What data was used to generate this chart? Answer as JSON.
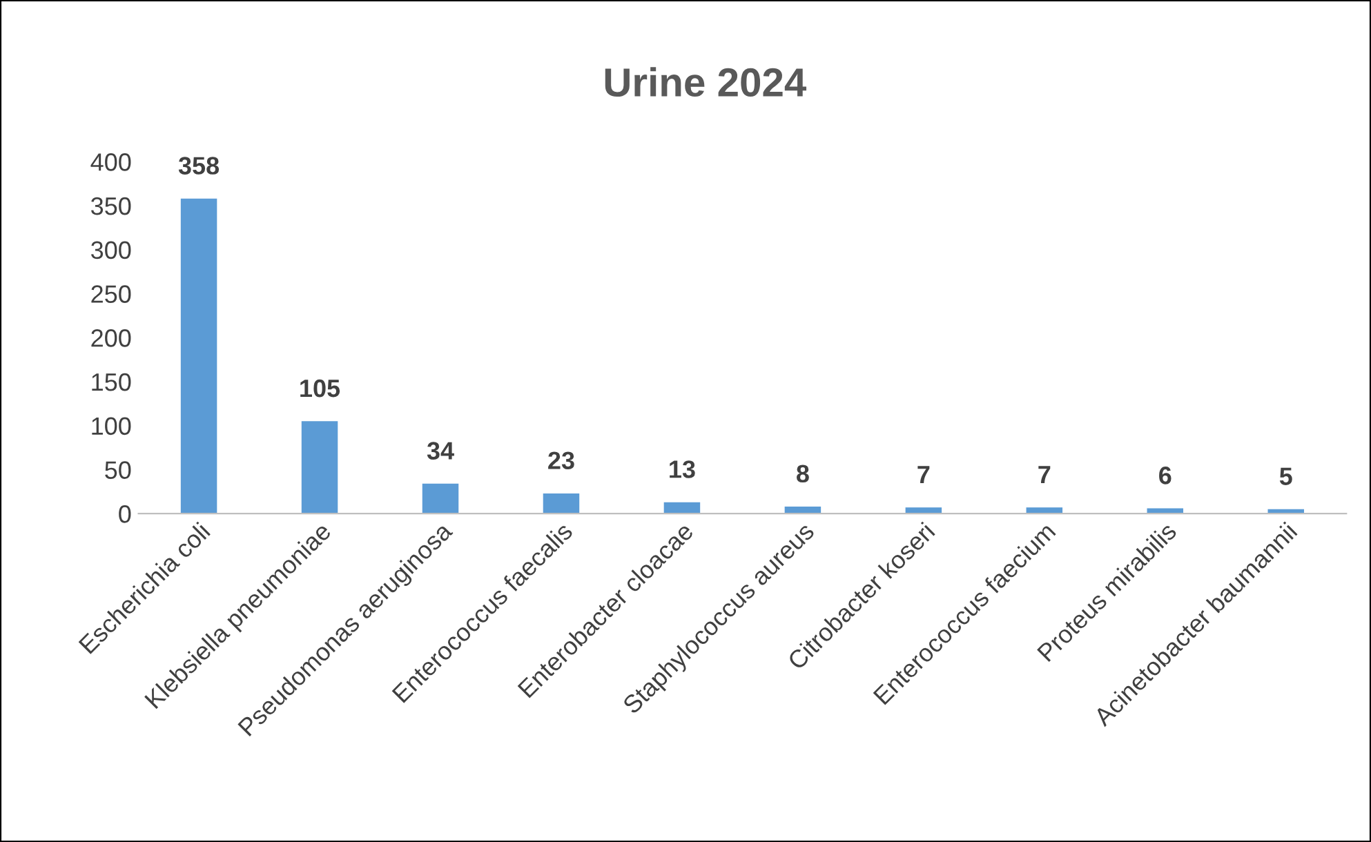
{
  "chart_data": {
    "type": "bar",
    "title": "Urine 2024",
    "categories": [
      "Escherichia coli",
      "Klebsiella pneumoniae",
      "Pseudomonas aeruginosa",
      "Enterococcus faecalis",
      "Enterobacter cloacae",
      "Staphylococcus aureus",
      "Citrobacter koseri",
      "Enterococcus faecium",
      "Proteus mirabilis",
      "Acinetobacter baumannii"
    ],
    "values": [
      358,
      105,
      34,
      23,
      13,
      8,
      7,
      7,
      6,
      5
    ],
    "color": "#5b9bd5",
    "ylim": [
      0,
      400
    ],
    "yticks": [
      0,
      50,
      100,
      150,
      200,
      250,
      300,
      350,
      400
    ],
    "data_labels": true,
    "grid": false,
    "legend": false
  }
}
